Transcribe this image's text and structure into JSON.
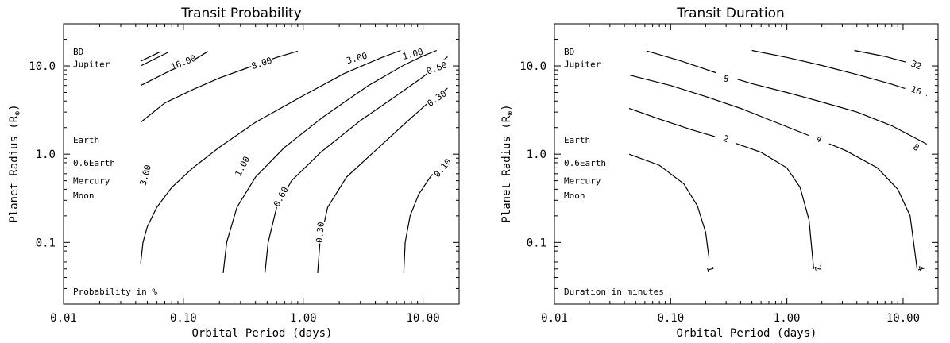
{
  "chart_data": [
    {
      "type": "line",
      "title": "Transit Probability",
      "xlabel": "Orbital Period (days)",
      "ylabel": "Planet Radius (R",
      "ylabel_sub": "⊕",
      "ylabel_close": ")",
      "xscale": "log",
      "yscale": "log",
      "xlim": [
        0.01,
        20
      ],
      "ylim": [
        0.02,
        30
      ],
      "x_ticks": [
        {
          "value": 0.01,
          "label": "0.01"
        },
        {
          "value": 0.1,
          "label": "0.10"
        },
        {
          "value": 1,
          "label": "1.00"
        },
        {
          "value": 10,
          "label": "10.00"
        }
      ],
      "y_ticks": [
        {
          "value": 0.1,
          "label": "0.1"
        },
        {
          "value": 1,
          "label": "1.0"
        },
        {
          "value": 10,
          "label": "10.0"
        }
      ],
      "note": "Probability in %",
      "object_labels": [
        {
          "text": "BD",
          "radius": 14.5
        },
        {
          "text": "Jupiter",
          "radius": 10.5
        },
        {
          "text": "Earth",
          "radius": 1.45
        },
        {
          "text": "0.6Earth",
          "radius": 0.8
        },
        {
          "text": "Mercury",
          "radius": 0.5
        },
        {
          "text": "Moon",
          "radius": 0.34
        }
      ],
      "series": [
        {
          "label": "",
          "points": [
            [
              0.044,
              11.3
            ],
            [
              0.063,
              14.3
            ]
          ]
        },
        {
          "label": "",
          "points": [
            [
              0.044,
              10.0
            ],
            [
              0.074,
              14.2
            ]
          ]
        },
        {
          "label": "16.00",
          "label_at": [
            0.1,
            11.0
          ],
          "label_angle": -22,
          "points": [
            [
              0.044,
              6.0
            ],
            [
              0.08,
              9.0
            ],
            [
              0.12,
              11.5
            ],
            [
              0.16,
              14.6
            ]
          ]
        },
        {
          "label": "8.00",
          "label_at": [
            0.45,
            10.8
          ],
          "label_angle": -18,
          "points": [
            [
              0.044,
              2.3
            ],
            [
              0.07,
              3.8
            ],
            [
              0.12,
              5.4
            ],
            [
              0.2,
              7.3
            ],
            [
              0.35,
              9.6
            ],
            [
              0.6,
              12.5
            ],
            [
              0.9,
              14.7
            ]
          ]
        },
        {
          "label": "3.00",
          "label_at": [
            2.8,
            12.3
          ],
          "label_angle": -15,
          "points": [
            [
              0.044,
              0.058
            ],
            [
              0.046,
              0.1
            ],
            [
              0.05,
              0.15
            ],
            [
              0.06,
              0.25
            ],
            [
              0.08,
              0.42
            ],
            [
              0.12,
              0.7
            ],
            [
              0.2,
              1.2
            ],
            [
              0.4,
              2.3
            ],
            [
              1.0,
              4.6
            ],
            [
              2.2,
              8.2
            ],
            [
              4.5,
              12.4
            ],
            [
              6.5,
              15.0
            ]
          ]
        },
        {
          "label": "1.00",
          "label_at": [
            8.2,
            13.7
          ],
          "label_angle": -15,
          "points": [
            [
              0.215,
              0.045
            ],
            [
              0.23,
              0.1
            ],
            [
              0.28,
              0.25
            ],
            [
              0.4,
              0.55
            ],
            [
              0.7,
              1.2
            ],
            [
              1.5,
              2.7
            ],
            [
              3.5,
              6.0
            ],
            [
              7.0,
              10.3
            ],
            [
              10,
              13.0
            ],
            [
              13,
              15.0
            ]
          ]
        },
        {
          "label": "0.60",
          "label_at": [
            13.0,
            9.5
          ],
          "label_angle": -20,
          "points": [
            [
              0.48,
              0.045
            ],
            [
              0.51,
              0.1
            ],
            [
              0.6,
              0.25
            ],
            [
              0.8,
              0.5
            ],
            [
              1.4,
              1.05
            ],
            [
              3.0,
              2.4
            ],
            [
              6.0,
              4.6
            ],
            [
              10.0,
              7.5
            ],
            [
              16.0,
              12.7
            ]
          ]
        },
        {
          "label": "0.30",
          "label_at": [
            13.0,
            4.3
          ],
          "label_angle": -35,
          "points": [
            [
              1.32,
              0.045
            ],
            [
              1.38,
              0.1
            ],
            [
              1.6,
              0.25
            ],
            [
              2.3,
              0.55
            ],
            [
              4.0,
              1.1
            ],
            [
              7.0,
              2.2
            ],
            [
              11.0,
              3.8
            ],
            [
              16.0,
              5.6
            ]
          ]
        },
        {
          "label": "0.10",
          "label_at": [
            14.5,
            0.7
          ],
          "label_angle": -50,
          "points": [
            [
              6.9,
              0.045
            ],
            [
              7.1,
              0.1
            ],
            [
              7.8,
              0.2
            ],
            [
              9.2,
              0.35
            ],
            [
              11.5,
              0.55
            ],
            [
              14.5,
              0.8
            ],
            [
              16.0,
              0.9
            ]
          ]
        }
      ],
      "rotated_labels": [
        {
          "text": "3.00",
          "at": [
            0.048,
            0.58
          ],
          "angle": -75
        },
        {
          "text": "1.00",
          "at": [
            0.31,
            0.73
          ],
          "angle": -62
        },
        {
          "text": "0.60",
          "at": [
            0.65,
            0.33
          ],
          "angle": -62
        },
        {
          "text": "0.30",
          "at": [
            1.38,
            0.13
          ],
          "angle": -85
        }
      ]
    },
    {
      "type": "line",
      "title": "Transit Duration",
      "xlabel": "Orbital Period (days)",
      "ylabel": "Planet Radius (R",
      "ylabel_sub": "⊕",
      "ylabel_close": ")",
      "xscale": "log",
      "yscale": "log",
      "xlim": [
        0.01,
        20
      ],
      "ylim": [
        0.02,
        30
      ],
      "x_ticks": [
        {
          "value": 0.01,
          "label": "0.01"
        },
        {
          "value": 0.1,
          "label": "0.10"
        },
        {
          "value": 1,
          "label": "1.00"
        },
        {
          "value": 10,
          "label": "10.00"
        }
      ],
      "y_ticks": [
        {
          "value": 0.1,
          "label": "0.1"
        },
        {
          "value": 1,
          "label": "1.0"
        },
        {
          "value": 10,
          "label": "10.0"
        }
      ],
      "note": "Duration in minutes",
      "object_labels": [
        {
          "text": "BD",
          "radius": 14.5
        },
        {
          "text": "Jupiter",
          "radius": 10.5
        },
        {
          "text": "Earth",
          "radius": 1.45
        },
        {
          "text": "0.6Earth",
          "radius": 0.8
        },
        {
          "text": "Mercury",
          "radius": 0.5
        },
        {
          "text": "Moon",
          "radius": 0.34
        }
      ],
      "series": [
        {
          "label": "32",
          "label_at": [
            13.0,
            10.3
          ],
          "label_angle": 22,
          "points": [
            [
              3.8,
              15.0
            ],
            [
              7.0,
              12.8
            ],
            [
              11.0,
              10.9
            ],
            [
              16.0,
              9.5
            ]
          ]
        },
        {
          "label": "16",
          "label_at": [
            13.0,
            5.3
          ],
          "label_angle": 22,
          "points": [
            [
              0.5,
              15.0
            ],
            [
              1.0,
              12.5
            ],
            [
              2.0,
              10.1
            ],
            [
              4.0,
              8.0
            ],
            [
              8.0,
              6.2
            ],
            [
              16.0,
              4.6
            ]
          ]
        },
        {
          "label": "8",
          "label_at": [
            0.3,
            7.2
          ],
          "label_angle": 18,
          "points": [
            [
              0.062,
              14.8
            ],
            [
              0.12,
              11.5
            ],
            [
              0.25,
              8.3
            ],
            [
              0.5,
              6.3
            ],
            [
              1.0,
              5.0
            ],
            [
              2.0,
              3.9
            ],
            [
              4.0,
              3.0
            ],
            [
              8.0,
              2.1
            ],
            [
              16.0,
              1.3
            ]
          ]
        },
        {
          "label": "8",
          "label_at": [
            13.0,
            1.2
          ],
          "label_angle": 30,
          "points": []
        },
        {
          "label": "2",
          "label_at": [
            0.3,
            1.5
          ],
          "label_angle": 22,
          "points": [
            [
              0.044,
              3.3
            ],
            [
              0.08,
              2.5
            ],
            [
              0.15,
              1.9
            ],
            [
              0.3,
              1.45
            ],
            [
              0.6,
              1.05
            ],
            [
              1.0,
              0.7
            ],
            [
              1.3,
              0.42
            ],
            [
              1.55,
              0.18
            ],
            [
              1.7,
              0.05
            ]
          ]
        },
        {
          "label": "4",
          "label_at": [
            1.9,
            1.5
          ],
          "label_angle": 28,
          "points": [
            [
              0.044,
              7.9
            ],
            [
              0.1,
              6.0
            ],
            [
              0.2,
              4.5
            ],
            [
              0.4,
              3.3
            ],
            [
              0.8,
              2.3
            ],
            [
              1.6,
              1.6
            ],
            [
              3.2,
              1.1
            ],
            [
              6.0,
              0.7
            ],
            [
              9.0,
              0.4
            ],
            [
              11.5,
              0.2
            ],
            [
              13.2,
              0.05
            ]
          ]
        },
        {
          "label": "1",
          "label_at": [
            0.22,
            0.05
          ],
          "label_angle": 75,
          "points": [
            [
              0.044,
              1.0
            ],
            [
              0.08,
              0.75
            ],
            [
              0.13,
              0.46
            ],
            [
              0.17,
              0.26
            ],
            [
              0.2,
              0.13
            ],
            [
              0.22,
              0.05
            ]
          ]
        }
      ],
      "end_labels": [
        {
          "text": "2",
          "at": [
            1.75,
            0.05
          ]
        },
        {
          "text": "4",
          "at": [
            13.4,
            0.05
          ]
        }
      ]
    }
  ]
}
